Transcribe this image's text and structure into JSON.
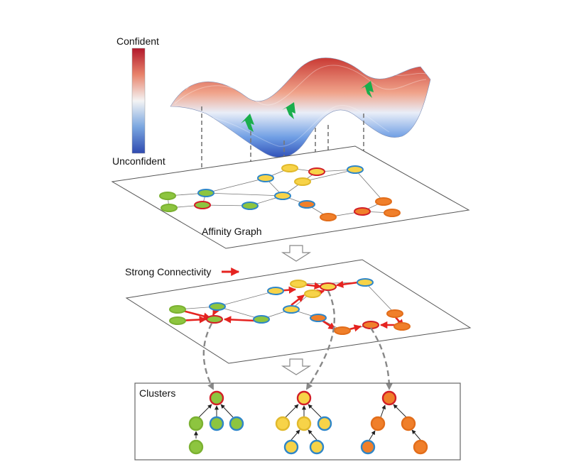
{
  "legend": {
    "high_label": "Confident",
    "low_label": "Unconfident",
    "colors": [
      "#b2182b",
      "#e8836b",
      "#f4f4f4",
      "#7aa6e0",
      "#2f4ab0"
    ]
  },
  "affinity_graph": {
    "label": "Affinity Graph"
  },
  "strong_connectivity": {
    "label": "Strong Connectivity",
    "arrow_color": "#e52320"
  },
  "clusters": {
    "label": "Clusters"
  },
  "node_colors": {
    "green": "#8dc53f",
    "yellow": "#f7d348",
    "orange": "#f07f2a",
    "blue_ring": "#2e86c8",
    "red_ring": "#d21f27"
  }
}
